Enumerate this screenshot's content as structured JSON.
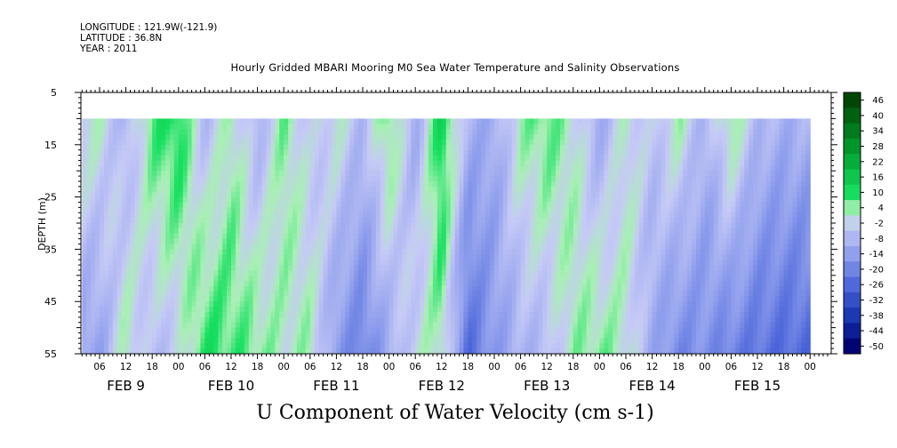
{
  "header": {
    "longitude": "LONGITUDE : 121.9W(-121.9)",
    "latitude": "LATITUDE : 36.8N",
    "year": "YEAR : 2011"
  },
  "chart_data": {
    "type": "heatmap",
    "title": "Hourly Gridded MBARI Mooring M0 Sea Water Temperature and Salinity Observations",
    "xlabel": "U Component of Water Velocity (cm s-1)",
    "ylabel": "DEPTH (m)",
    "ylim": [
      55,
      5
    ],
    "yticks": [
      5,
      15,
      25,
      35,
      45,
      55
    ],
    "data_depth_range": [
      10,
      55
    ],
    "xticks_hours": [
      "06",
      "12",
      "18",
      "00",
      "06",
      "12",
      "18",
      "00",
      "06",
      "12",
      "18",
      "00",
      "06",
      "12",
      "18",
      "00",
      "06",
      "12",
      "18",
      "00",
      "06",
      "12",
      "18",
      "00",
      "06",
      "12",
      "18",
      "00"
    ],
    "xticks_days": [
      "FEB  9",
      "FEB 10",
      "FEB 11",
      "FEB 12",
      "FEB 13",
      "FEB 14",
      "FEB 15"
    ],
    "colorbar_labels": [
      "46",
      "40",
      "34",
      "28",
      "22",
      "16",
      "10",
      "4",
      "-2",
      "-8",
      "-14",
      "-20",
      "-26",
      "-32",
      "-38",
      "-44",
      "-50"
    ],
    "colorscale": [
      {
        "value": 50,
        "color": "#003a00"
      },
      {
        "value": 28,
        "color": "#009a2a"
      },
      {
        "value": 10,
        "color": "#18e060"
      },
      {
        "value": 4,
        "color": "#a8f0b4"
      },
      {
        "value": -2,
        "color": "#c6caf6"
      },
      {
        "value": -14,
        "color": "#8c9cec"
      },
      {
        "value": -26,
        "color": "#4a64d8"
      },
      {
        "value": -38,
        "color": "#1834b0"
      },
      {
        "value": -50,
        "color": "#00006e"
      }
    ],
    "u_profile": [
      {
        "day": "FEB 9",
        "hour": 6,
        "surface": 2,
        "bottom": -12
      },
      {
        "day": "FEB 9",
        "hour": 12,
        "surface": -8,
        "bottom": 4
      },
      {
        "day": "FEB 9",
        "hour": 18,
        "surface": 8,
        "bottom": -6
      },
      {
        "day": "FEB 10",
        "hour": 0,
        "surface": 12,
        "bottom": -2
      },
      {
        "day": "FEB 10",
        "hour": 6,
        "surface": -6,
        "bottom": 10
      },
      {
        "day": "FEB 10",
        "hour": 12,
        "surface": 4,
        "bottom": 8
      },
      {
        "day": "FEB 10",
        "hour": 18,
        "surface": -8,
        "bottom": 6
      },
      {
        "day": "FEB 11",
        "hour": 0,
        "surface": 6,
        "bottom": 2
      },
      {
        "day": "FEB 11",
        "hour": 6,
        "surface": -4,
        "bottom": 4
      },
      {
        "day": "FEB 11",
        "hour": 12,
        "surface": 2,
        "bottom": -14
      },
      {
        "day": "FEB 11",
        "hour": 18,
        "surface": -6,
        "bottom": -20
      },
      {
        "day": "FEB 12",
        "hour": 0,
        "surface": 8,
        "bottom": -10
      },
      {
        "day": "FEB 12",
        "hour": 6,
        "surface": -10,
        "bottom": 0
      },
      {
        "day": "FEB 12",
        "hour": 12,
        "surface": 14,
        "bottom": 4
      },
      {
        "day": "FEB 12",
        "hour": 18,
        "surface": -8,
        "bottom": -24
      },
      {
        "day": "FEB 13",
        "hour": 0,
        "surface": -10,
        "bottom": -14
      },
      {
        "day": "FEB 13",
        "hour": 6,
        "surface": 4,
        "bottom": -8
      },
      {
        "day": "FEB 13",
        "hour": 12,
        "surface": 8,
        "bottom": -6
      },
      {
        "day": "FEB 13",
        "hour": 18,
        "surface": 2,
        "bottom": 4
      },
      {
        "day": "FEB 14",
        "hour": 0,
        "surface": -10,
        "bottom": 6
      },
      {
        "day": "FEB 14",
        "hour": 6,
        "surface": 2,
        "bottom": 2
      },
      {
        "day": "FEB 14",
        "hour": 12,
        "surface": -4,
        "bottom": -10
      },
      {
        "day": "FEB 14",
        "hour": 18,
        "surface": 4,
        "bottom": -18
      },
      {
        "day": "FEB 15",
        "hour": 0,
        "surface": -8,
        "bottom": -16
      },
      {
        "day": "FEB 15",
        "hour": 6,
        "surface": 6,
        "bottom": -20
      },
      {
        "day": "FEB 15",
        "hour": 12,
        "surface": -6,
        "bottom": -22
      },
      {
        "day": "FEB 15",
        "hour": 18,
        "surface": -8,
        "bottom": -24
      }
    ]
  }
}
